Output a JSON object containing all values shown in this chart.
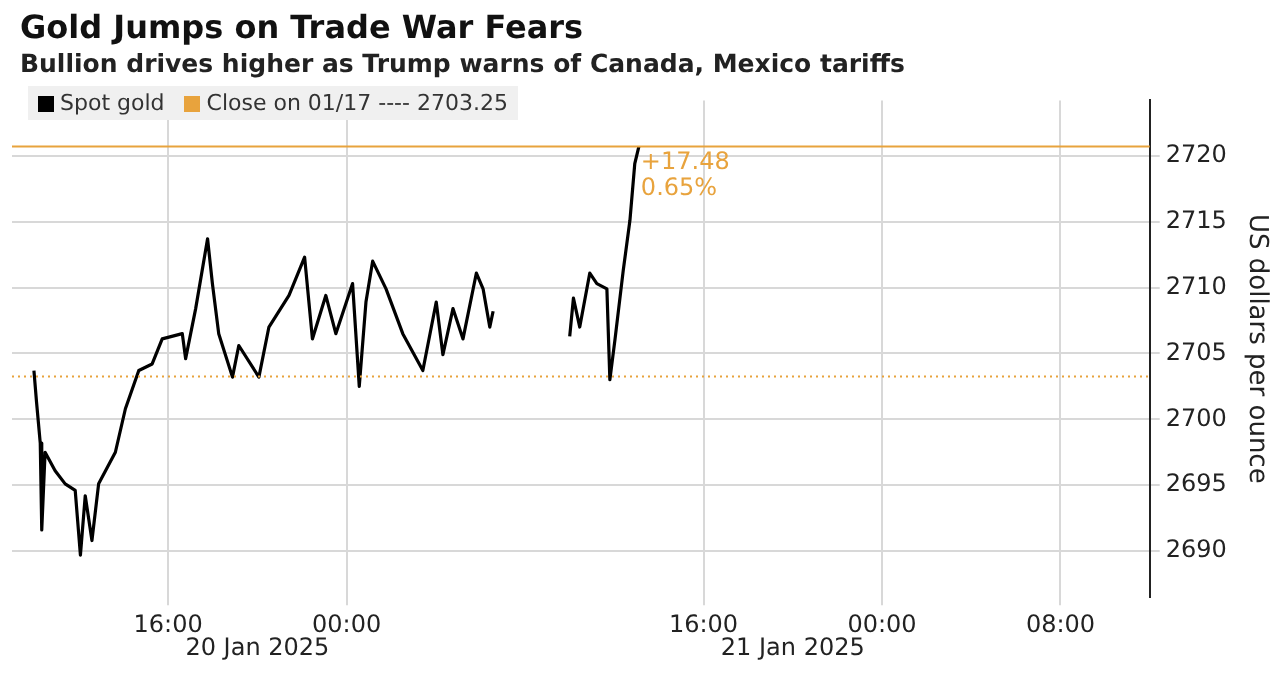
{
  "chart_data": {
    "type": "line",
    "title": "Gold Jumps on Trade War Fears",
    "subtitle": "Bullion drives higher as Trump warns of Canada, Mexico tariffs",
    "ylabel": "US dollars per ounce",
    "xlim": [
      "2025-01-20T09:00",
      "2025-01-22T12:00"
    ],
    "xticks": [
      {
        "value": "2025-01-20T16:00",
        "label": "16:00"
      },
      {
        "value": "2025-01-21T00:00",
        "label": "00:00"
      },
      {
        "value": "2025-01-21T16:00",
        "label": "16:00"
      },
      {
        "value": "2025-01-22T00:00",
        "label": "00:00"
      },
      {
        "value": "2025-01-22T08:00",
        "label": "08:00"
      }
    ],
    "ylim": [
      2686.5,
      2724.2
    ],
    "yticks": [
      2690,
      2695,
      2700,
      2705,
      2710,
      2715,
      2720
    ],
    "grid": true,
    "legend": "top left",
    "marker": "none",
    "line_style": "solid",
    "series": [
      {
        "name": "Spot gold",
        "color": "#000000",
        "x": [
          "2025-01-20T09:59",
          "2025-01-20T10:06",
          "2025-01-20T10:16",
          "2025-01-20T10:20",
          "2025-01-20T10:29",
          "2025-01-20T10:56",
          "2025-01-20T11:23",
          "2025-01-20T11:50",
          "2025-01-20T12:04",
          "2025-01-20T12:17",
          "2025-01-20T12:35",
          "2025-01-20T12:53",
          "2025-01-20T13:38",
          "2025-01-20T14:05",
          "2025-01-20T14:41",
          "2025-01-20T15:17",
          "2025-01-20T15:44",
          "2025-01-20T16:38",
          "2025-01-20T16:47",
          "2025-01-20T17:14",
          "2025-01-20T17:46",
          "2025-01-20T17:59",
          "2025-01-20T18:16",
          "2025-01-20T18:53",
          "2025-01-20T19:10",
          "2025-01-20T20:04",
          "2025-01-20T20:31",
          "2025-01-20T21:25",
          "2025-01-20T22:07",
          "2025-01-20T22:28",
          "2025-01-20T23:04",
          "2025-01-20T23:31",
          "2025-01-21T00:16",
          "2025-01-21T00:34",
          "2025-01-21T00:52",
          "2025-01-21T01:10",
          "2025-01-21T01:46",
          "2025-01-21T02:31",
          "2025-01-21T03:25",
          "2025-01-21T04:01",
          "2025-01-21T04:19",
          "2025-01-21T04:46",
          "2025-01-21T05:13",
          "2025-01-21T05:49",
          "2025-01-21T06:07",
          "2025-01-21T06:25",
          "2025-01-21T06:34",
          "2025-01-21T08:00",
          "2025-01-21T10:00",
          "2025-01-21T10:10",
          "2025-01-21T10:27",
          "2025-01-21T10:54",
          "2025-01-21T11:13",
          "2025-01-21T11:40",
          "2025-01-21T11:48",
          "2025-01-21T12:02",
          "2025-01-21T12:24",
          "2025-01-21T12:42",
          "2025-01-21T12:55",
          "2025-01-21T13:06"
        ],
        "values": [
          2703.7,
          2701.3,
          2698.2,
          2691.6,
          2697.5,
          2696.1,
          2695.1,
          2694.6,
          2689.7,
          2694.2,
          2690.8,
          2695.1,
          2697.5,
          2700.8,
          2703.7,
          2704.2,
          2706.1,
          2706.5,
          2704.6,
          2708.4,
          2713.7,
          2710.3,
          2706.5,
          2703.2,
          2705.6,
          2703.2,
          2707.0,
          2709.4,
          2712.3,
          2706.1,
          2709.4,
          2706.5,
          2710.3,
          2702.5,
          2708.9,
          2712.0,
          2709.9,
          2706.5,
          2703.7,
          2708.9,
          2704.9,
          2708.4,
          2706.1,
          2711.1,
          2709.9,
          2707.0,
          2708.2,
          null,
          2706.3,
          2709.2,
          2707.0,
          2711.1,
          2710.3,
          2709.9,
          2703.0,
          2706.1,
          2711.3,
          2715.1,
          2719.4,
          2720.7
        ]
      }
    ],
    "ref_lines": [
      {
        "axis": "y",
        "value": 2703.25,
        "label": "Close on 01/17 ---- 2703.25",
        "color": "#e8a33d",
        "line_style": "dotted"
      },
      {
        "axis": "y",
        "value": 2720.7,
        "color": "#e8a33d",
        "line_style": "solid"
      }
    ],
    "annotations": [
      {
        "text": "+17.48",
        "x": "2025-01-21T13:06",
        "y": 2720.7
      },
      {
        "text": "0.65%",
        "x": "2025-01-21T13:06",
        "y": 2720.7
      },
      "20 Jan 2025",
      "21 Jan 2025"
    ]
  }
}
